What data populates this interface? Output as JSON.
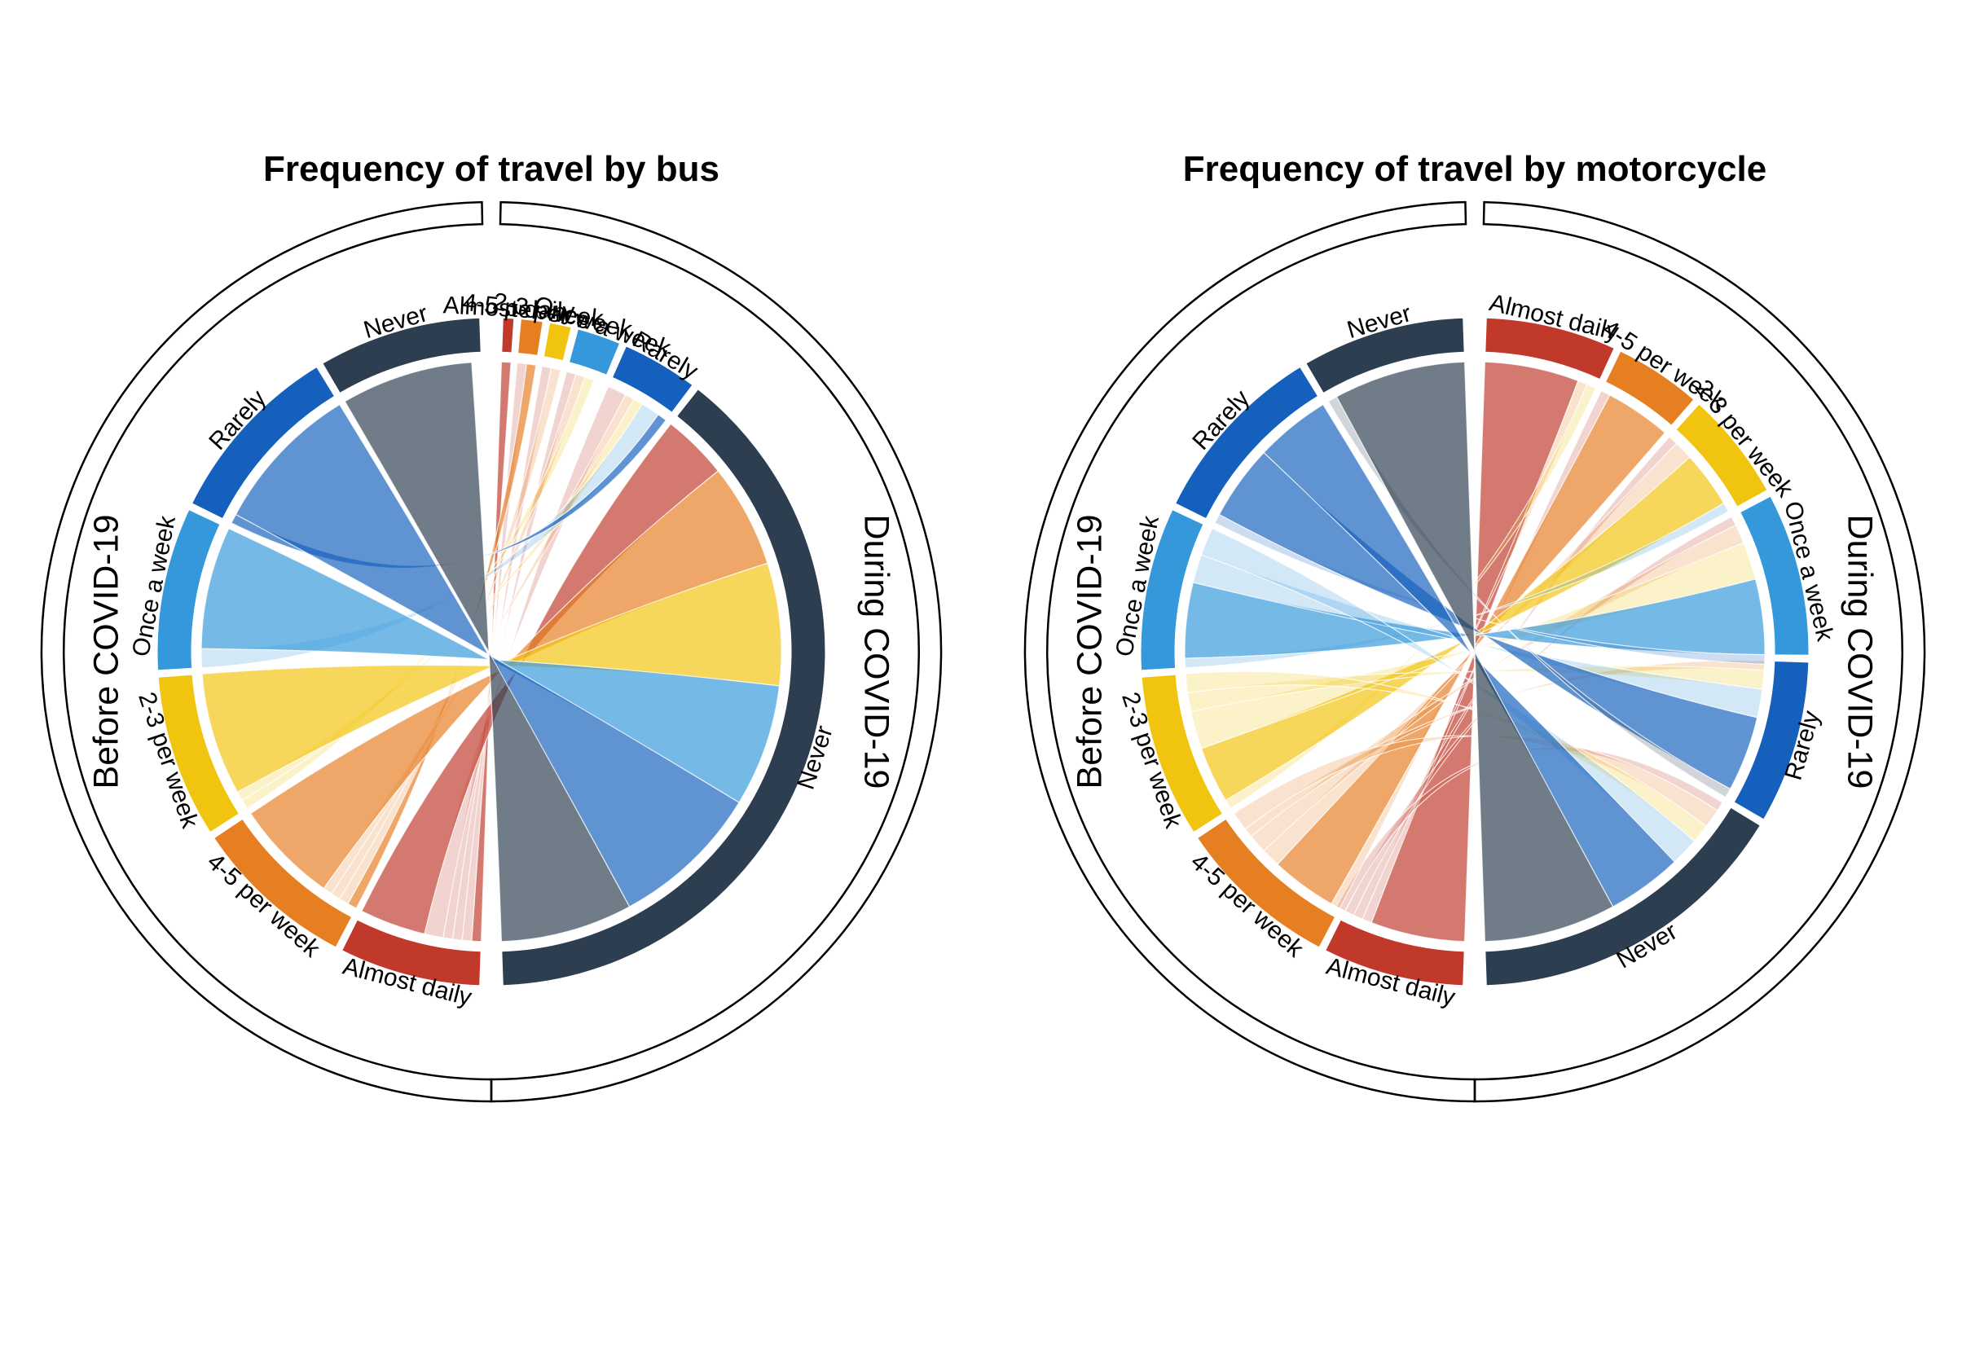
{
  "chart_data": [
    {
      "type": "chord",
      "title": "Frequency of travel by bus",
      "groups": [
        {
          "name": "Before COVID-19",
          "side": "left"
        },
        {
          "name": "During COVID-19",
          "side": "right"
        }
      ],
      "before_sectors": [
        {
          "name": "Almost daily",
          "label": "Almost daily",
          "color": "#C0392B",
          "value": 13
        },
        {
          "name": "4-5 per week",
          "label": "4-5 per week",
          "color": "#E67E22",
          "value": 15
        },
        {
          "name": "2-3 per week",
          "label": "2-3 per week",
          "color": "#F1C40F",
          "value": 15
        },
        {
          "name": "Once a week",
          "label": "Once a week",
          "color": "#3498DB",
          "value": 15
        },
        {
          "name": "Rarely",
          "label": "Rarely",
          "color": "#1560BD",
          "value": 17
        },
        {
          "name": "Never",
          "label": "Never",
          "color": "#2C3E50",
          "value": 15
        }
      ],
      "during_sectors": [
        {
          "name": "Almost daily",
          "label": "Almost daily",
          "color": "#C0392B",
          "value": 1
        },
        {
          "name": "4-5 per week",
          "label": "4-5 per week",
          "color": "#E67E22",
          "value": 2
        },
        {
          "name": "2-3 per week",
          "label": "2-3 per week",
          "color": "#F1C40F",
          "value": 2
        },
        {
          "name": "Once a week",
          "label": "Once a week",
          "color": "#3498DB",
          "value": 4
        },
        {
          "name": "Rarely",
          "label": "Rarely",
          "color": "#1560BD",
          "value": 7
        },
        {
          "name": "Never",
          "label": "Never",
          "color": "#2C3E50",
          "value": 74
        }
      ],
      "flows": [
        [
          0,
          0,
          1
        ],
        [
          0,
          1,
          1
        ],
        [
          0,
          2,
          1
        ],
        [
          0,
          3,
          1
        ],
        [
          0,
          4,
          2
        ],
        [
          0,
          5,
          7
        ],
        [
          1,
          1,
          1
        ],
        [
          1,
          2,
          1
        ],
        [
          1,
          3,
          1
        ],
        [
          1,
          4,
          1
        ],
        [
          1,
          5,
          11
        ],
        [
          2,
          3,
          1
        ],
        [
          2,
          4,
          1
        ],
        [
          2,
          5,
          13
        ],
        [
          3,
          4,
          2
        ],
        [
          3,
          5,
          13
        ],
        [
          4,
          4,
          1
        ],
        [
          4,
          5,
          16
        ],
        [
          5,
          5,
          14
        ]
      ]
    },
    {
      "type": "chord",
      "title": "Frequency of travel by motorcycle",
      "groups": [
        {
          "name": "Before COVID-19",
          "side": "left"
        },
        {
          "name": "During COVID-19",
          "side": "right"
        }
      ],
      "before_sectors": [
        {
          "name": "Almost daily",
          "label": "Almost daily",
          "color": "#C0392B",
          "value": 13
        },
        {
          "name": "4-5 per week",
          "label": "4-5 per week",
          "color": "#E67E22",
          "value": 15
        },
        {
          "name": "2-3 per week",
          "label": "2-3 per week",
          "color": "#F1C40F",
          "value": 15
        },
        {
          "name": "Once a week",
          "label": "Once a week",
          "color": "#3498DB",
          "value": 15
        },
        {
          "name": "Rarely",
          "label": "Rarely",
          "color": "#1560BD",
          "value": 17
        },
        {
          "name": "Never",
          "label": "Never",
          "color": "#2C3E50",
          "value": 15
        }
      ],
      "during_sectors": [
        {
          "name": "Almost daily",
          "label": "Almost daily",
          "color": "#C0392B",
          "value": 12
        },
        {
          "name": "4-5 per week",
          "label": "4-5 per week",
          "color": "#E67E22",
          "value": 8
        },
        {
          "name": "2-3 per week",
          "label": "2-3 per week",
          "color": "#F1C40F",
          "value": 10
        },
        {
          "name": "Once a week",
          "label": "Once a week",
          "color": "#3498DB",
          "value": 15
        },
        {
          "name": "Rarely",
          "label": "Rarely",
          "color": "#1560BD",
          "value": 15
        },
        {
          "name": "Never",
          "label": "Never",
          "color": "#2C3E50",
          "value": 30
        }
      ],
      "flows": [
        [
          0,
          0,
          10
        ],
        [
          0,
          1,
          1
        ],
        [
          0,
          2,
          1
        ],
        [
          0,
          3,
          1
        ],
        [
          0,
          5,
          1
        ],
        [
          1,
          0,
          1
        ],
        [
          1,
          1,
          7
        ],
        [
          1,
          2,
          2
        ],
        [
          1,
          3,
          2
        ],
        [
          1,
          4,
          1
        ],
        [
          1,
          5,
          2
        ],
        [
          2,
          0,
          1
        ],
        [
          2,
          2,
          6
        ],
        [
          2,
          3,
          4
        ],
        [
          2,
          4,
          2
        ],
        [
          2,
          5,
          2
        ],
        [
          3,
          2,
          1
        ],
        [
          3,
          3,
          8
        ],
        [
          3,
          4,
          3
        ],
        [
          3,
          5,
          3
        ],
        [
          4,
          3,
          1
        ],
        [
          4,
          4,
          8
        ],
        [
          4,
          5,
          8
        ],
        [
          5,
          4,
          1
        ],
        [
          5,
          5,
          14
        ]
      ]
    }
  ]
}
